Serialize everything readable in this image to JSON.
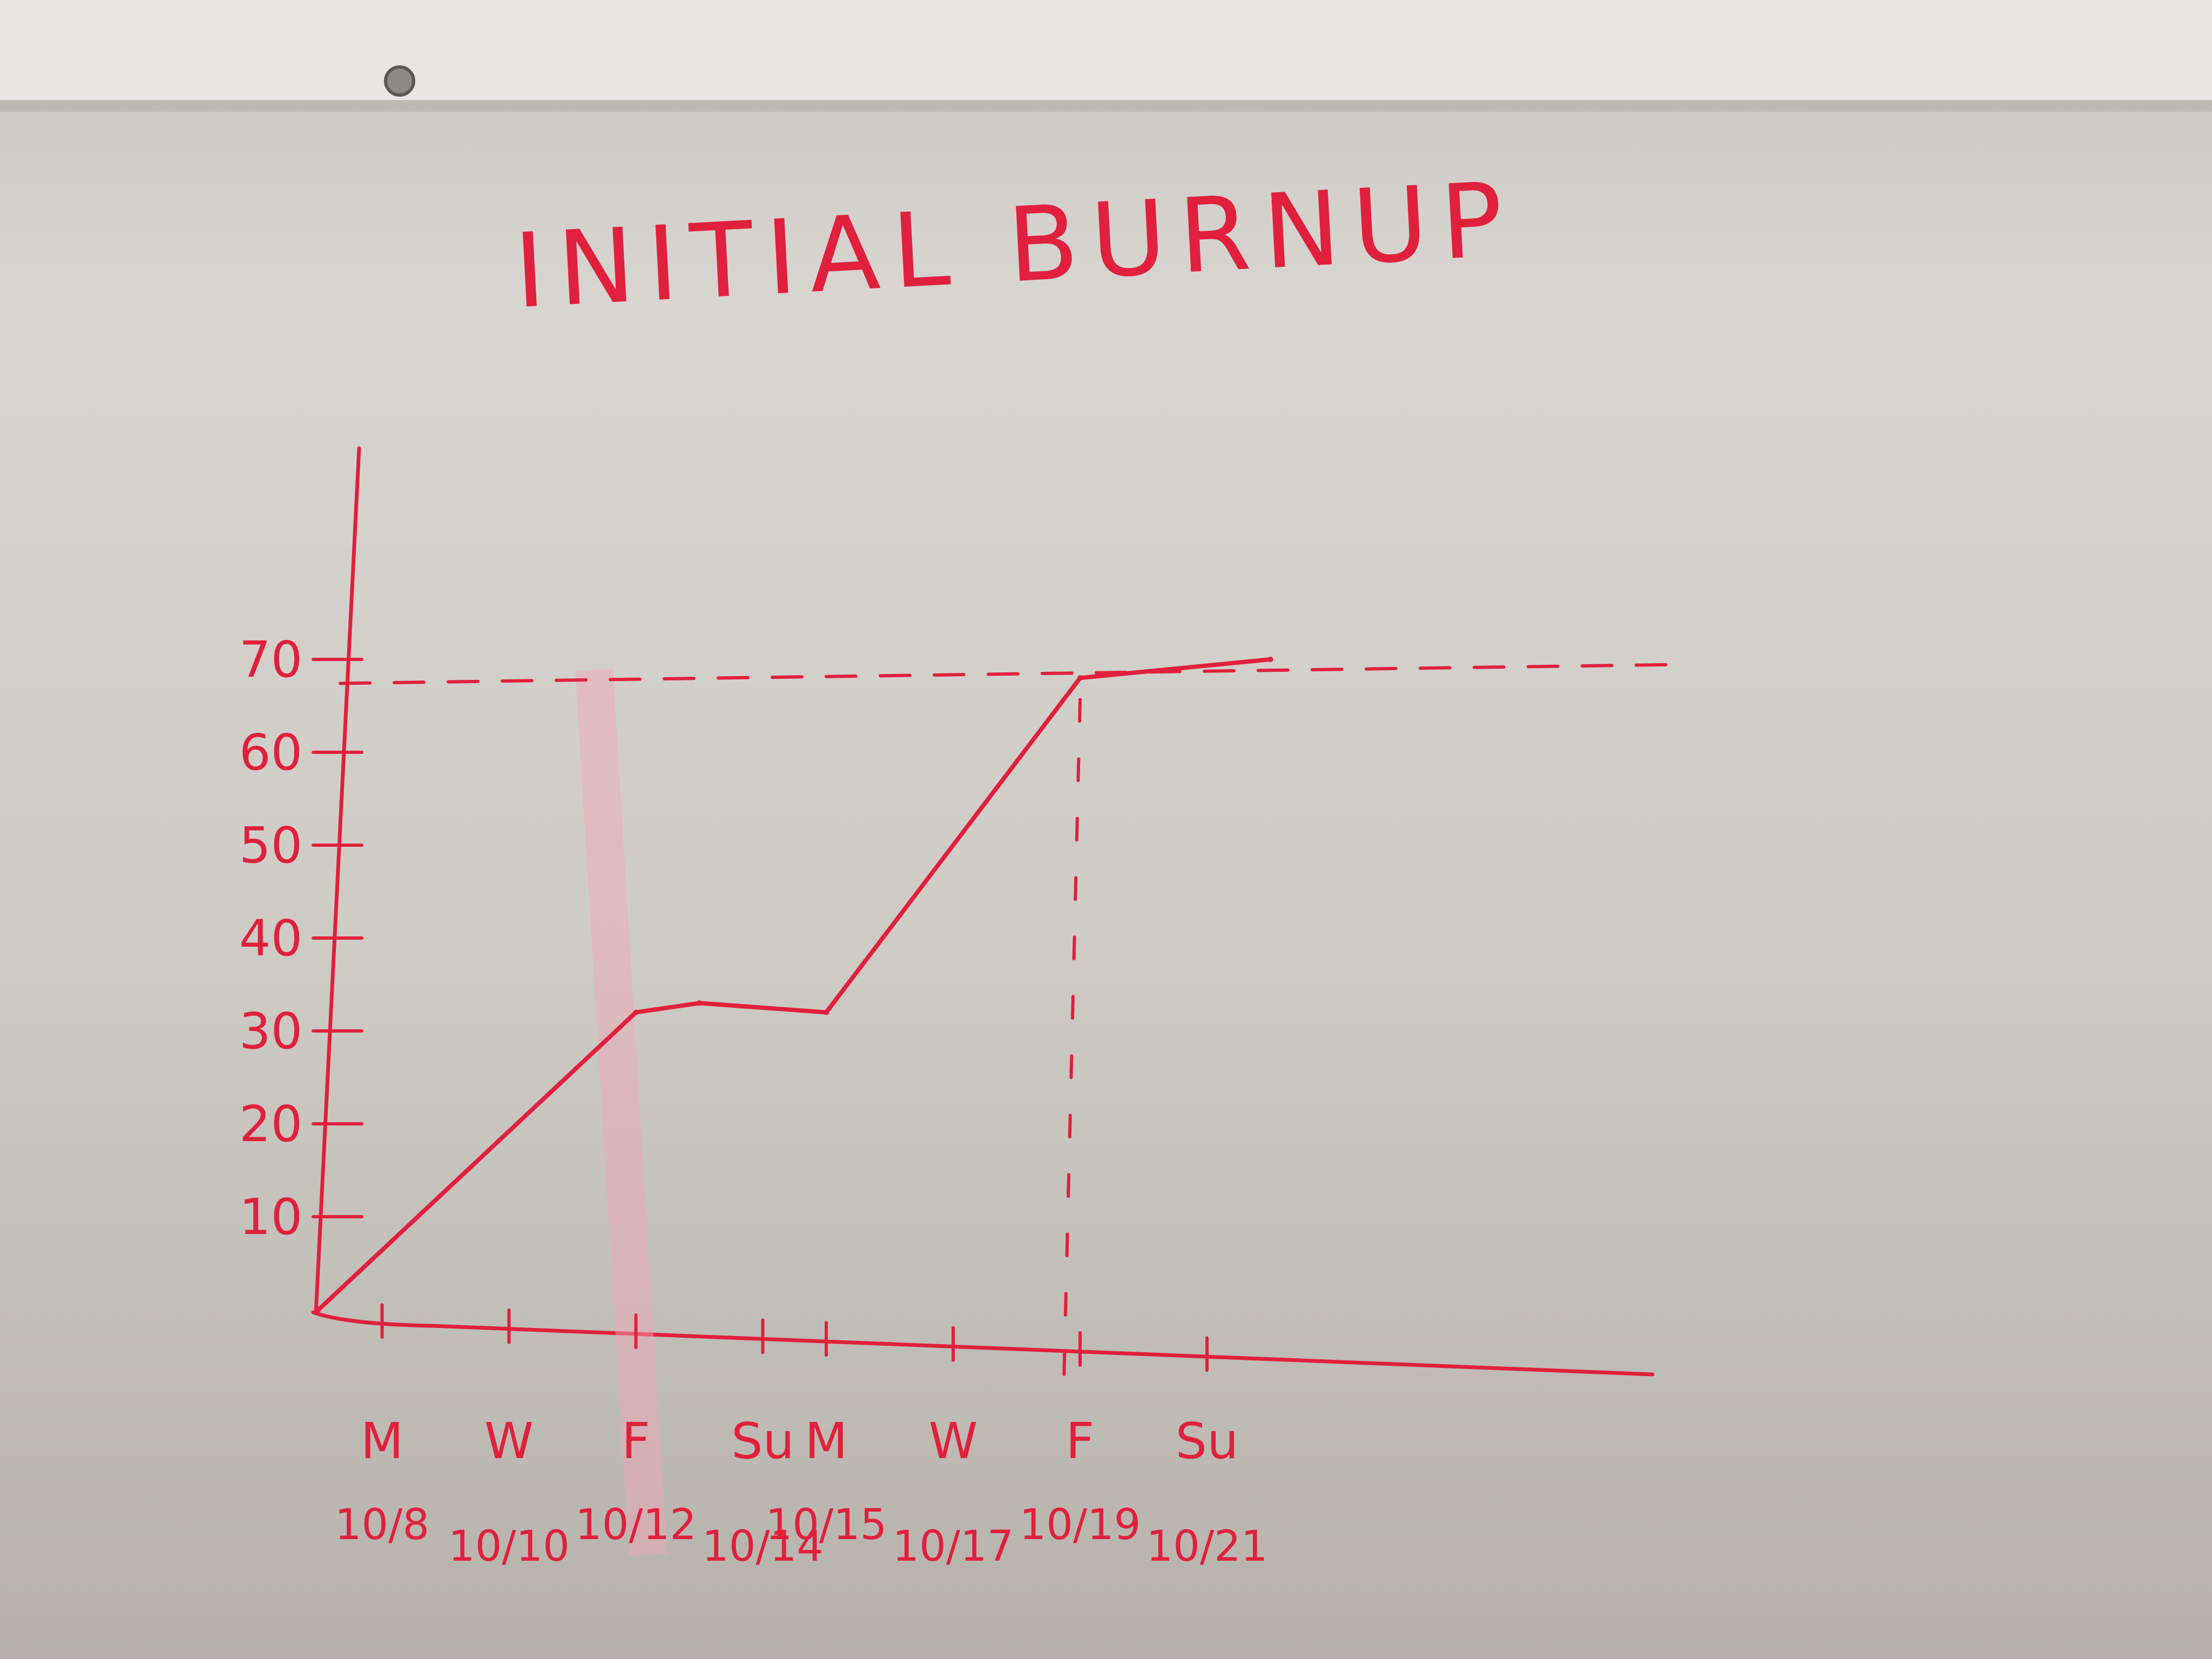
{
  "chart_data": {
    "type": "line",
    "title": "INITIAL BURNUP",
    "xlabel": "",
    "ylabel": "",
    "ylim": [
      0,
      70
    ],
    "y_ticks": [
      "10",
      "20",
      "30",
      "40",
      "50",
      "60",
      "70"
    ],
    "x_ticks": [
      {
        "day": "M",
        "date": "10/8"
      },
      {
        "day": "W",
        "date": "10/10"
      },
      {
        "day": "F",
        "date": "10/12"
      },
      {
        "day": "Su",
        "date": "10/14"
      },
      {
        "day": "M",
        "date": "10/15"
      },
      {
        "day": "W",
        "date": "10/17"
      },
      {
        "day": "F",
        "date": "10/19"
      },
      {
        "day": "Su",
        "date": "10/21"
      }
    ],
    "target_line": 68,
    "series": [
      {
        "x": [
          "10/7",
          "10/12",
          "10/13",
          "10/15",
          "10/19",
          "10/22"
        ],
        "values": [
          0,
          32,
          33,
          32,
          68,
          70
        ]
      }
    ],
    "grid": false,
    "legend": "none"
  },
  "colors": {
    "marker": "#e0203c",
    "board": "#d2cfca",
    "rail": "#e8e6e2"
  }
}
